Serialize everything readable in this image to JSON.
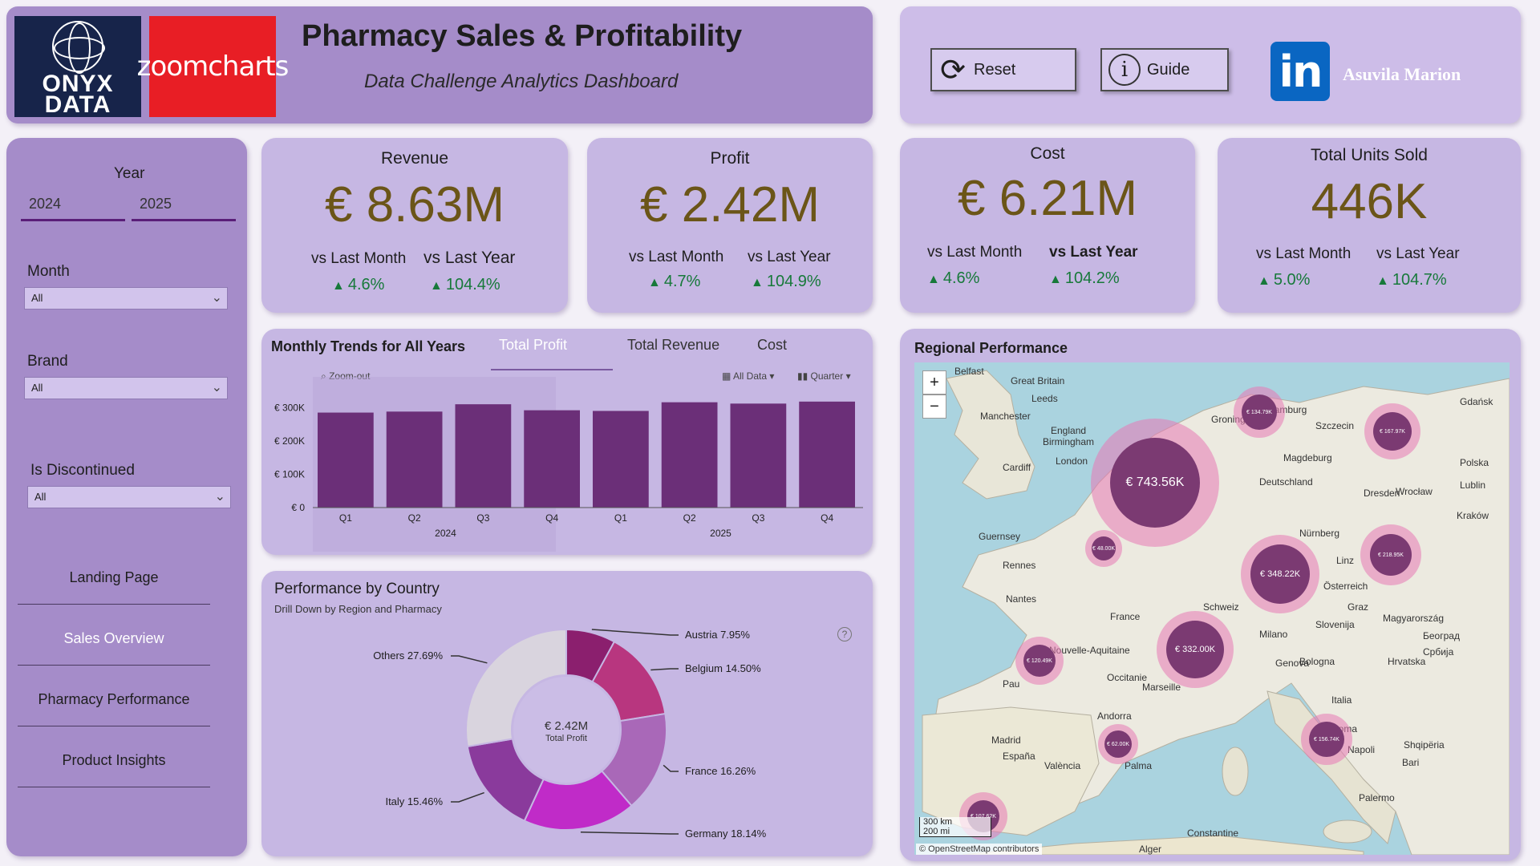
{
  "header": {
    "onyx_logo": "ONYX DATA",
    "zoom_logo": "zoomcharts",
    "title": "Pharmacy Sales & Profitability",
    "subtitle": "Data Challenge Analytics Dashboard"
  },
  "toolbar": {
    "reset_label": "Reset",
    "guide_label": "Guide",
    "author": "Asuvila Marion"
  },
  "filters": {
    "year_label": "Year",
    "years": [
      "2024",
      "2025"
    ],
    "month_label": "Month",
    "month_value": "All",
    "brand_label": "Brand",
    "brand_value": "All",
    "discontinued_label": "Is Discontinued",
    "discontinued_value": "All"
  },
  "nav": {
    "items": [
      "Landing Page",
      "Sales Overview",
      "Pharmacy Performance",
      "Product Insights"
    ],
    "active": "Sales Overview"
  },
  "kpis": [
    {
      "title": "Revenue",
      "value": "€ 8.63M",
      "vs_month_label": "vs Last Month",
      "vs_month": "4.6%",
      "vs_year_label": "vs Last Year",
      "vs_year": "104.4%"
    },
    {
      "title": "Profit",
      "value": "€ 2.42M",
      "vs_month_label": "vs Last Month",
      "vs_month": "4.7%",
      "vs_year_label": "vs Last Year",
      "vs_year": "104.9%"
    },
    {
      "title": "Cost",
      "value": "€ 6.21M",
      "vs_month_label": "vs Last Month",
      "vs_month": "4.6%",
      "vs_year_label": "vs Last Year",
      "vs_year": "104.2%"
    },
    {
      "title": "Total Units Sold",
      "value": "446K",
      "vs_month_label": "vs Last Month",
      "vs_month": "5.0%",
      "vs_year_label": "vs Last Year",
      "vs_year": "104.7%"
    }
  ],
  "trend": {
    "title": "Monthly Trends for All Years",
    "tabs": [
      "Total Profit",
      "Total Revenue",
      "Cost"
    ],
    "active_tab": "Total Profit",
    "zoom_out": "Zoom-out",
    "all_data": "All Data",
    "quarter": "Quarter"
  },
  "country": {
    "title": "Performance by Country",
    "subtitle": "Drill Down by Region and Pharmacy",
    "center_value": "€ 2.42M",
    "center_label": "Total Profit"
  },
  "region": {
    "title": "Regional Performance",
    "scale_km": "300 km",
    "scale_mi": "200 mi",
    "attribution": "© OpenStreetMap contributors",
    "bubbles": [
      {
        "label": "€ 743.56K"
      },
      {
        "label": "€ 348.22K"
      },
      {
        "label": "€ 332.00K"
      },
      {
        "label": "€ 134.79K"
      },
      {
        "label": "€ 167.97K"
      },
      {
        "label": "€ 218.95K"
      },
      {
        "label": "€ 120.49K"
      },
      {
        "label": "€ 156.74K"
      },
      {
        "label": "€ 107.62K"
      },
      {
        "label": "€ 48.00K"
      },
      {
        "label": "€ 62.00K"
      }
    ],
    "places": [
      "Belfast",
      "Great Britain",
      "Leeds",
      "Manchester",
      "Birmingham",
      "London",
      "Cardiff",
      "England",
      "Groningen",
      "Hamburg",
      "Gdańsk",
      "Szczecin",
      "Polska",
      "Deutschland",
      "Magdeburg",
      "Dresden",
      "Wrocław",
      "Kraków",
      "Lublin",
      "Nürnberg",
      "Linz",
      "Rennes",
      "Nantes",
      "France",
      "Guernsey",
      "Schweiz",
      "Österreich",
      "Graz",
      "Slovenija",
      "Magyarország",
      "Milano",
      "Genova",
      "Bologna",
      "Hrvatska",
      "Marseille",
      "Occitanie",
      "Andorra",
      "Madrid",
      "España",
      "València",
      "Palma",
      "Italia",
      "Roma",
      "Napoli",
      "Bari",
      "Shqipëria",
      "Palermo",
      "Constantine",
      "Alger",
      "Београд",
      "Србија",
      "Nouvelle-Aquitaine",
      "Pau"
    ]
  },
  "chart_data": [
    {
      "type": "bar",
      "title": "Monthly Trends for All Years",
      "series": [
        {
          "name": "Total Profit",
          "values": [
            285000,
            288000,
            310000,
            292000,
            290000,
            316000,
            312000,
            318000
          ]
        }
      ],
      "categories": [
        "Q1",
        "Q2",
        "Q3",
        "Q4",
        "Q1",
        "Q2",
        "Q3",
        "Q4"
      ],
      "groups": [
        {
          "label": "2024",
          "count": 4
        },
        {
          "label": "2025",
          "count": 4
        }
      ],
      "yticks": [
        "€ 0",
        "€ 100K",
        "€ 200K",
        "€ 300K"
      ],
      "ylim": [
        0,
        320000
      ],
      "color": "#6b2f78"
    },
    {
      "type": "pie",
      "title": "Performance by Country",
      "slices": [
        {
          "label": "Austria",
          "value": 7.95,
          "display": "7.95%",
          "color": "#8b1f6e"
        },
        {
          "label": "Belgium",
          "value": 14.5,
          "display": "14.50%",
          "color": "#b8367f"
        },
        {
          "label": "France",
          "value": 16.26,
          "display": "16.26%",
          "color": "#a968b8"
        },
        {
          "label": "Germany",
          "value": 18.14,
          "display": "18.14%",
          "color": "#c02bc8"
        },
        {
          "label": "Italy",
          "value": 15.46,
          "display": "15.46%",
          "color": "#8a3a9c"
        },
        {
          "label": "Others",
          "value": 27.69,
          "display": "27.69%",
          "color": "#d9d4de"
        }
      ]
    }
  ]
}
